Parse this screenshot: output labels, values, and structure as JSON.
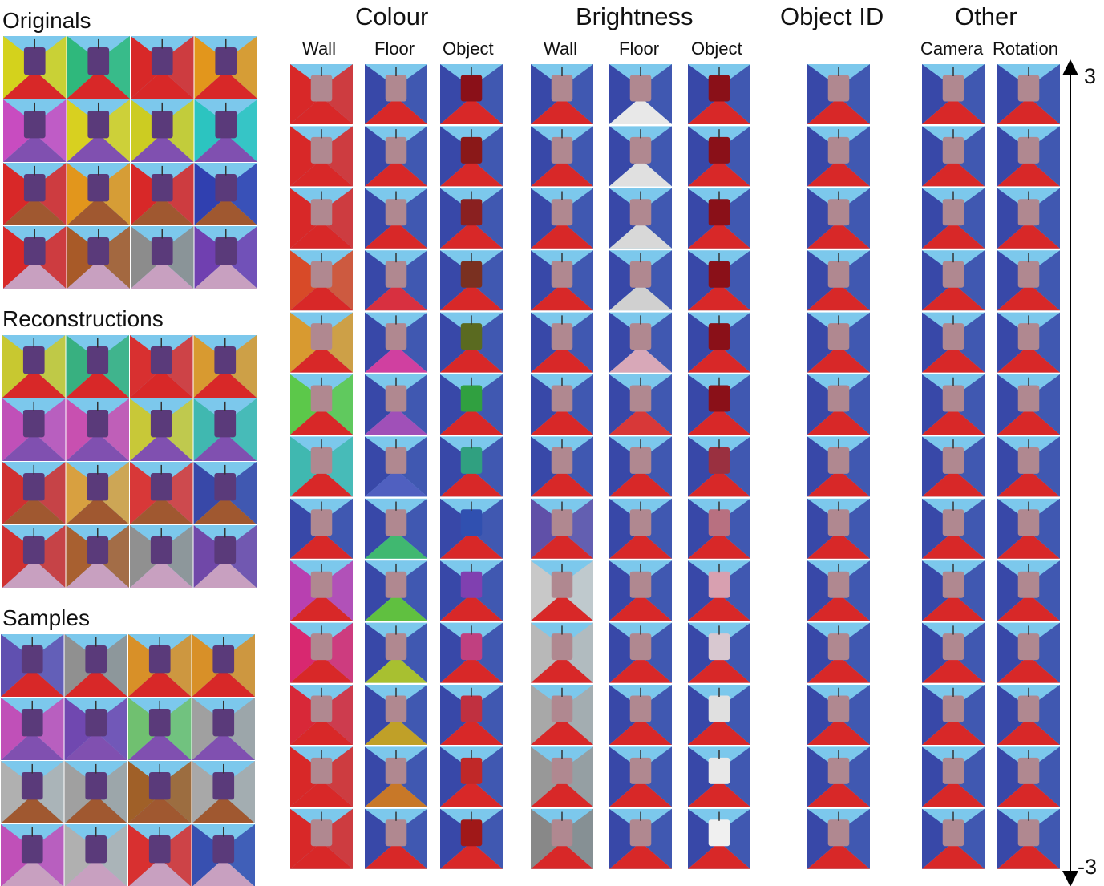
{
  "sections": {
    "originals": "Originals",
    "reconstructions": "Reconstructions",
    "samples": "Samples"
  },
  "groups": {
    "colour": "Colour",
    "brightness": "Brightness",
    "object_id": "Object ID",
    "other": "Other"
  },
  "columns": {
    "colour_wall": "Wall",
    "colour_floor": "Floor",
    "colour_object": "Object",
    "brightness_wall": "Wall",
    "brightness_floor": "Floor",
    "brightness_object": "Object",
    "other_camera": "Camera",
    "other_rotation": "Rotation"
  },
  "axis": {
    "top": "3",
    "bottom": "-3"
  },
  "traversal_steps": 13,
  "grids": {
    "originals": [
      [
        "#d4d21c",
        "#2fb87c",
        "#d82828",
        "#e2961c"
      ],
      [
        "#c84cc0",
        "#d8d020",
        "#cccc22",
        "#2cc4c0"
      ],
      [
        "#d82828",
        "#e2961c",
        "#d82828",
        "#3040b0"
      ],
      [
        "#d82828",
        "#a85a28",
        "#8c8c8c",
        "#7040b0"
      ]
    ],
    "reconstructions": [
      [
        "#c8c830",
        "#38b080",
        "#d83030",
        "#d89a30"
      ],
      [
        "#c050b8",
        "#c850b0",
        "#c8c838",
        "#40b8b0"
      ],
      [
        "#d03030",
        "#d8a040",
        "#d83838",
        "#3848a8"
      ],
      [
        "#d03030",
        "#a86030",
        "#909090",
        "#7048a8"
      ]
    ],
    "samples": [
      [
        "#6050b0",
        "#909090",
        "#d89028",
        "#d89028"
      ],
      [
        "#c050b8",
        "#7048b0",
        "#70c070",
        "#a0a0a0"
      ],
      [
        "#b0b0b0",
        "#a0a0a0",
        "#a06028",
        "#a8a8a8"
      ],
      [
        "#c050b8",
        "#b0b0b0",
        "#d83030",
        "#3850b0"
      ]
    ]
  },
  "colour_wall_sequence": [
    "#d82828",
    "#d82828",
    "#d82828",
    "#d84a28",
    "#d89a30",
    "#5cc84a",
    "#40b8b0",
    "#3848a8",
    "#b840b0",
    "#d82870",
    "#d82838",
    "#d82828",
    "#d82828"
  ],
  "colour_floor_sequence": [
    "#d82828",
    "#d82828",
    "#d82828",
    "#d83040",
    "#d040a0",
    "#a050b8",
    "#5060c0",
    "#40b870",
    "#60c040",
    "#a8c030",
    "#c0a028",
    "#c87828",
    "#d82828"
  ],
  "colour_object_sequence": [
    "#8a1018",
    "#8a1818",
    "#8a2020",
    "#7a3020",
    "#5a6a20",
    "#30a040",
    "#30a080",
    "#3050b0",
    "#8040b0",
    "#c04080",
    "#c03040",
    "#c02828",
    "#a01818"
  ],
  "brightness_wall_sequence": [
    "#3848a8",
    "#3848a8",
    "#3848a8",
    "#3848a8",
    "#3848a8",
    "#3848a8",
    "#3848a8",
    "#6050a8",
    "#c8c8c8",
    "#b8b8b8",
    "#a8a8a8",
    "#989898",
    "#888888"
  ],
  "brightness_floor_sequence": [
    "#e8e8e8",
    "#e0e0e0",
    "#d8d8d8",
    "#d0d0d0",
    "#d8a8b8",
    "#d83838",
    "#d82828",
    "#d82828",
    "#d82828",
    "#d82828",
    "#d82828",
    "#d82828",
    "#d82828"
  ],
  "brightness_object_sequence": [
    "#8a1018",
    "#8a1018",
    "#8a1018",
    "#8a1018",
    "#8a1018",
    "#8a1018",
    "#9a3040",
    "#b87080",
    "#d8a0b0",
    "#d8c8d0",
    "#e0e0e0",
    "#e8e8e8",
    "#f0f0f0"
  ]
}
